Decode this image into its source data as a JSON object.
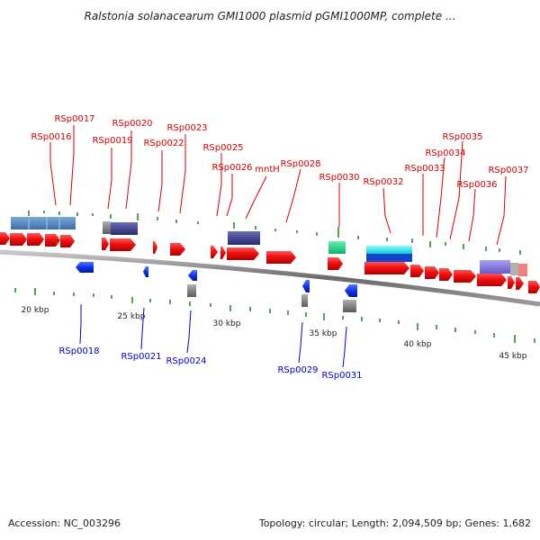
{
  "title": "Ralstonia solanacearum GMI1000 plasmid pGMI1000MP, complete ...",
  "footer": {
    "accession": "Accession: NC_003296",
    "summary": "Topology: circular; Length: 2,094,509 bp; Genes: 1,682"
  },
  "kbp_labels": [
    "20 kbp",
    "25 kbp",
    "30 kbp",
    "35 kbp",
    "40 kbp",
    "45 kbp"
  ],
  "top_labels": [
    "RSp0016",
    "RSp0017",
    "RSp0019",
    "RSp0020",
    "RSp0022",
    "RSp0023",
    "RSp0025",
    "RSp0026",
    "mntH",
    "RSp0028",
    "RSp0030",
    "RSp0032",
    "RSp0033",
    "RSp0034",
    "RSp0035",
    "RSp0036",
    "RSp0037"
  ],
  "bottom_labels": [
    "RSp0018",
    "RSp0021",
    "RSp0024",
    "RSp0029",
    "RSp0031"
  ],
  "colors": {
    "forward_gene": "#ee1111",
    "reverse_gene": "#1133ee",
    "top_label": "#d40000",
    "bottom_label": "#0000c8",
    "gc_tick": "#2a8a2a",
    "backbone": "#7a7a7a"
  }
}
